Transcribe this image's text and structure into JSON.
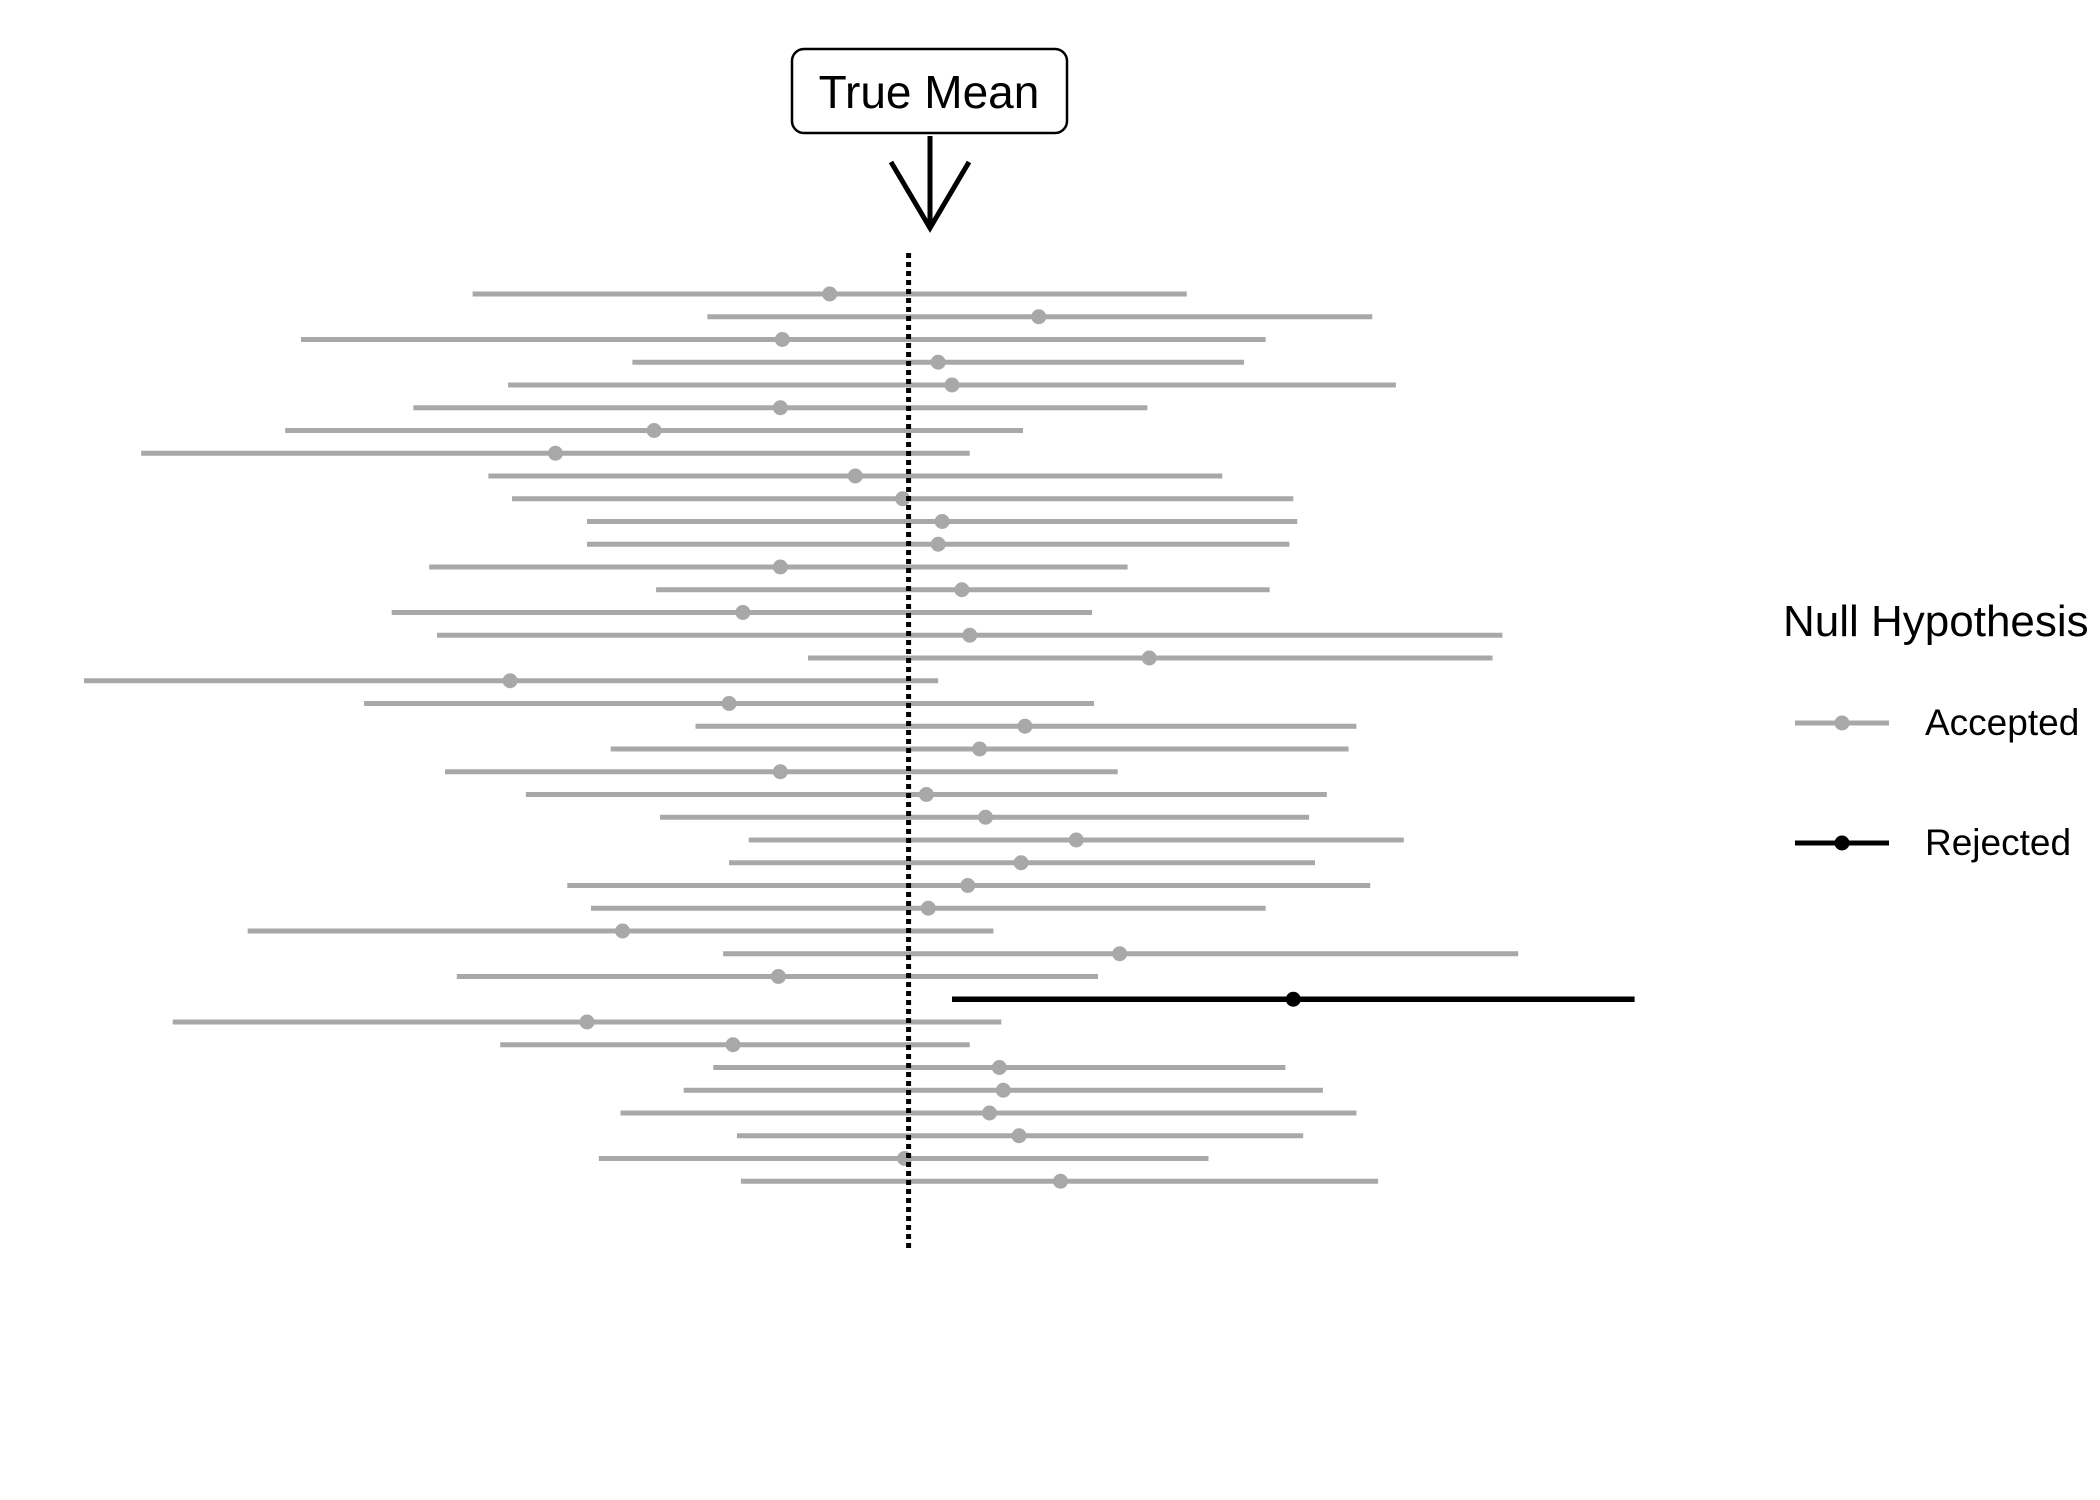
{
  "chart_data": {
    "type": "interval",
    "annotation": "True Mean",
    "true_mean": 0,
    "xlim": [
      -4.2,
      3.9
    ],
    "intervals": [
      {
        "lower": -2.21,
        "estimate": -0.4,
        "upper": 1.41,
        "status": "accepted"
      },
      {
        "lower": -1.02,
        "estimate": 0.66,
        "upper": 2.35,
        "status": "accepted"
      },
      {
        "lower": -3.08,
        "estimate": -0.64,
        "upper": 1.81,
        "status": "accepted"
      },
      {
        "lower": -1.4,
        "estimate": 0.15,
        "upper": 1.7,
        "status": "accepted"
      },
      {
        "lower": -2.03,
        "estimate": 0.22,
        "upper": 2.47,
        "status": "accepted"
      },
      {
        "lower": -2.51,
        "estimate": -0.65,
        "upper": 1.21,
        "status": "accepted"
      },
      {
        "lower": -3.16,
        "estimate": -1.29,
        "upper": 0.58,
        "status": "accepted"
      },
      {
        "lower": -3.89,
        "estimate": -1.79,
        "upper": 0.31,
        "status": "accepted"
      },
      {
        "lower": -2.13,
        "estimate": -0.27,
        "upper": 1.59,
        "status": "accepted"
      },
      {
        "lower": -2.01,
        "estimate": -0.03,
        "upper": 1.95,
        "status": "accepted"
      },
      {
        "lower": -1.63,
        "estimate": 0.17,
        "upper": 1.97,
        "status": "accepted"
      },
      {
        "lower": -1.63,
        "estimate": 0.15,
        "upper": 1.93,
        "status": "accepted"
      },
      {
        "lower": -2.43,
        "estimate": -0.65,
        "upper": 1.11,
        "status": "accepted"
      },
      {
        "lower": -1.28,
        "estimate": 0.27,
        "upper": 1.83,
        "status": "accepted"
      },
      {
        "lower": -2.62,
        "estimate": -0.84,
        "upper": 0.93,
        "status": "accepted"
      },
      {
        "lower": -2.39,
        "estimate": 0.31,
        "upper": 3.01,
        "status": "accepted"
      },
      {
        "lower": -0.51,
        "estimate": 1.22,
        "upper": 2.96,
        "status": "accepted"
      },
      {
        "lower": -4.18,
        "estimate": -2.02,
        "upper": 0.15,
        "status": "accepted"
      },
      {
        "lower": -2.76,
        "estimate": -0.91,
        "upper": 0.94,
        "status": "accepted"
      },
      {
        "lower": -1.08,
        "estimate": 0.59,
        "upper": 2.27,
        "status": "accepted"
      },
      {
        "lower": -1.51,
        "estimate": 0.36,
        "upper": 2.23,
        "status": "accepted"
      },
      {
        "lower": -2.35,
        "estimate": -0.65,
        "upper": 1.06,
        "status": "accepted"
      },
      {
        "lower": -1.94,
        "estimate": 0.09,
        "upper": 2.12,
        "status": "accepted"
      },
      {
        "lower": -1.26,
        "estimate": 0.39,
        "upper": 2.03,
        "status": "accepted"
      },
      {
        "lower": -0.81,
        "estimate": 0.85,
        "upper": 2.51,
        "status": "accepted"
      },
      {
        "lower": -0.91,
        "estimate": 0.57,
        "upper": 2.06,
        "status": "accepted"
      },
      {
        "lower": -1.73,
        "estimate": 0.3,
        "upper": 2.34,
        "status": "accepted"
      },
      {
        "lower": -1.61,
        "estimate": 0.1,
        "upper": 1.81,
        "status": "accepted"
      },
      {
        "lower": -3.35,
        "estimate": -1.45,
        "upper": 0.43,
        "status": "accepted"
      },
      {
        "lower": -0.94,
        "estimate": 1.07,
        "upper": 3.09,
        "status": "accepted"
      },
      {
        "lower": -2.29,
        "estimate": -0.66,
        "upper": 0.96,
        "status": "accepted"
      },
      {
        "lower": 0.22,
        "estimate": 1.95,
        "upper": 3.68,
        "status": "rejected"
      },
      {
        "lower": -3.73,
        "estimate": -1.63,
        "upper": 0.47,
        "status": "accepted"
      },
      {
        "lower": -2.07,
        "estimate": -0.89,
        "upper": 0.31,
        "status": "accepted"
      },
      {
        "lower": -0.99,
        "estimate": 0.46,
        "upper": 1.91,
        "status": "accepted"
      },
      {
        "lower": -1.14,
        "estimate": 0.48,
        "upper": 2.1,
        "status": "accepted"
      },
      {
        "lower": -1.46,
        "estimate": 0.41,
        "upper": 2.27,
        "status": "accepted"
      },
      {
        "lower": -0.87,
        "estimate": 0.56,
        "upper": 2.0,
        "status": "accepted"
      },
      {
        "lower": -1.57,
        "estimate": -0.02,
        "upper": 1.52,
        "status": "accepted"
      },
      {
        "lower": -0.85,
        "estimate": 0.77,
        "upper": 2.38,
        "status": "accepted"
      }
    ],
    "legend": {
      "title": "Null Hypothesis",
      "position": "right",
      "items": [
        {
          "label": "Accepted",
          "status": "accepted"
        },
        {
          "label": "Rejected",
          "status": "rejected"
        }
      ]
    },
    "colors": {
      "accepted": "#a8a8a8",
      "rejected": "#000000",
      "true_mean_line": "#000000"
    },
    "grid": false
  }
}
